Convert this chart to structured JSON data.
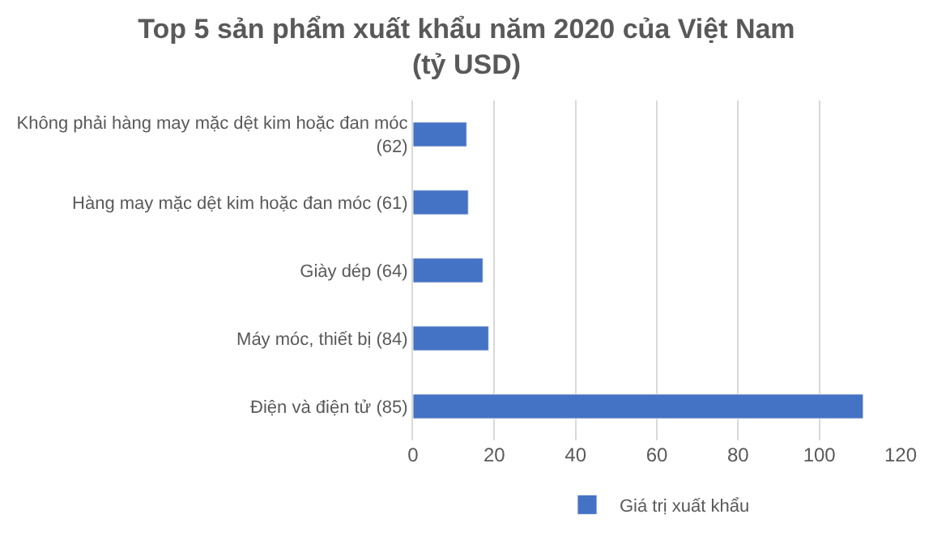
{
  "chart_data": {
    "type": "bar",
    "orientation": "horizontal",
    "title": "Top 5 sản phẩm xuất khẩu năm 2020 của Việt Nam (tỷ USD)",
    "categories": [
      "Không phải hàng may mặc dệt kim hoặc đan móc (62)",
      "Hàng may mặc dệt kim hoặc đan móc (61)",
      "Giày dép (64)",
      "Máy móc, thiết bị (84)",
      "Điện và điện tử (85)"
    ],
    "series": [
      {
        "name": "Giá trị xuất khẩu",
        "color": "#4472c4",
        "values": [
          13.2,
          13.6,
          17.2,
          18.6,
          110.8
        ]
      }
    ],
    "xlim": [
      0,
      120
    ],
    "xticks": [
      0,
      20,
      40,
      60,
      80,
      100,
      120
    ],
    "grid": "x",
    "legend": "bottom"
  }
}
